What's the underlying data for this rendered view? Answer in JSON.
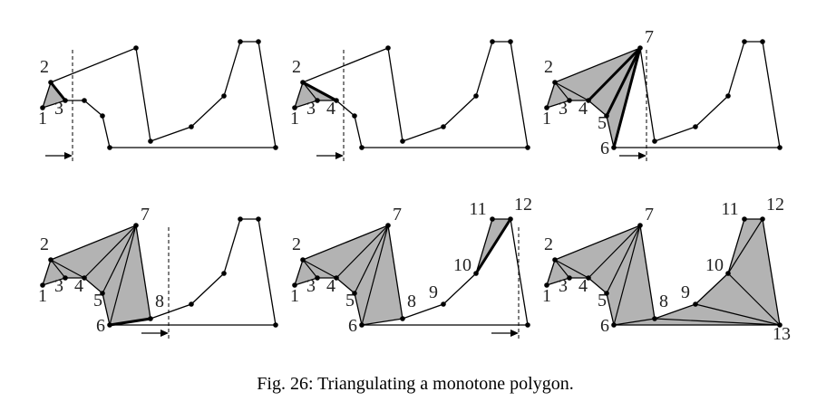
{
  "panels": [
    {
      "labels": [
        "1",
        "2",
        "3"
      ]
    },
    {
      "labels": [
        "1",
        "2",
        "3",
        "4"
      ]
    },
    {
      "labels": [
        "1",
        "2",
        "3",
        "4",
        "5",
        "6",
        "7"
      ]
    },
    {
      "labels": [
        "1",
        "2",
        "3",
        "4",
        "5",
        "6",
        "7",
        "8"
      ]
    },
    {
      "labels": [
        "1",
        "2",
        "3",
        "4",
        "5",
        "6",
        "7",
        "8",
        "9",
        "10",
        "11",
        "12"
      ]
    },
    {
      "labels": [
        "1",
        "2",
        "3",
        "4",
        "5",
        "6",
        "7",
        "8",
        "9",
        "10",
        "11",
        "12",
        "13"
      ]
    }
  ],
  "caption": "Fig. 26: Triangulating a monotone polygon."
}
